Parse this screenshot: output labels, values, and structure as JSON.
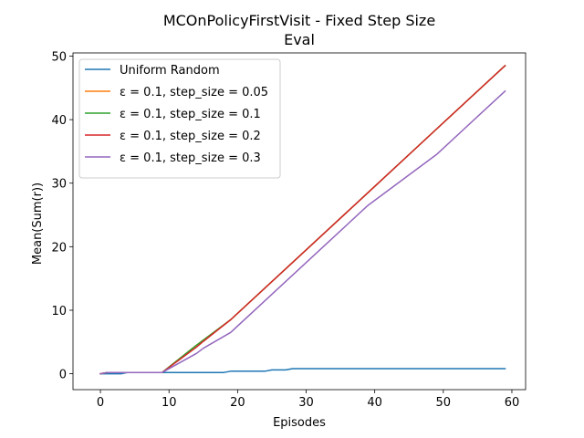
{
  "chart_data": {
    "type": "line",
    "title": "MCOnPolicyFirstVisit - Fixed Step Size",
    "subtitle": "Eval",
    "xlabel": "Episodes",
    "ylabel": "Mean(Sum(r))",
    "xlim": [
      -4,
      62
    ],
    "ylim": [
      -2.5,
      50.5
    ],
    "xticks": [
      0,
      10,
      20,
      30,
      40,
      50,
      60
    ],
    "yticks": [
      0,
      10,
      20,
      30,
      40,
      50
    ],
    "grid": false,
    "legend_position": "top-left",
    "series": [
      {
        "name": "Uniform Random",
        "color": "#1f77b4",
        "x": [
          0,
          3,
          4,
          18,
          19,
          24,
          25,
          27,
          28,
          59
        ],
        "y": [
          0,
          0,
          0.2,
          0.2,
          0.4,
          0.4,
          0.6,
          0.6,
          0.8,
          0.8
        ]
      },
      {
        "name": "ε = 0.1, step_size = 0.05",
        "color": "#ff7f0e",
        "x": [
          0,
          1,
          9,
          14,
          19,
          29,
          39,
          49,
          59
        ],
        "y": [
          0,
          0.2,
          0.2,
          4.5,
          8.5,
          18.5,
          28.5,
          38.5,
          48.5
        ]
      },
      {
        "name": "ε = 0.1, step_size = 0.1",
        "color": "#2ca02c",
        "x": [
          0,
          1,
          9,
          14,
          19,
          29,
          39,
          49,
          59
        ],
        "y": [
          0,
          0.2,
          0.2,
          4.5,
          8.5,
          18.5,
          28.5,
          38.5,
          48.5
        ]
      },
      {
        "name": "ε = 0.1, step_size = 0.2",
        "color": "#d62728",
        "x": [
          0,
          1,
          9,
          14,
          15,
          19,
          29,
          39,
          49,
          59
        ],
        "y": [
          0,
          0.2,
          0.2,
          4.2,
          5.1,
          8.5,
          18.5,
          28.5,
          38.5,
          48.5
        ]
      },
      {
        "name": "ε = 0.1, step_size = 0.3",
        "color": "#9467bd",
        "x": [
          0,
          1,
          9,
          14,
          15,
          19,
          29,
          39,
          49,
          59
        ],
        "y": [
          0,
          0.2,
          0.2,
          3.2,
          4.0,
          6.5,
          16.5,
          26.5,
          34.5,
          44.5
        ]
      }
    ]
  }
}
